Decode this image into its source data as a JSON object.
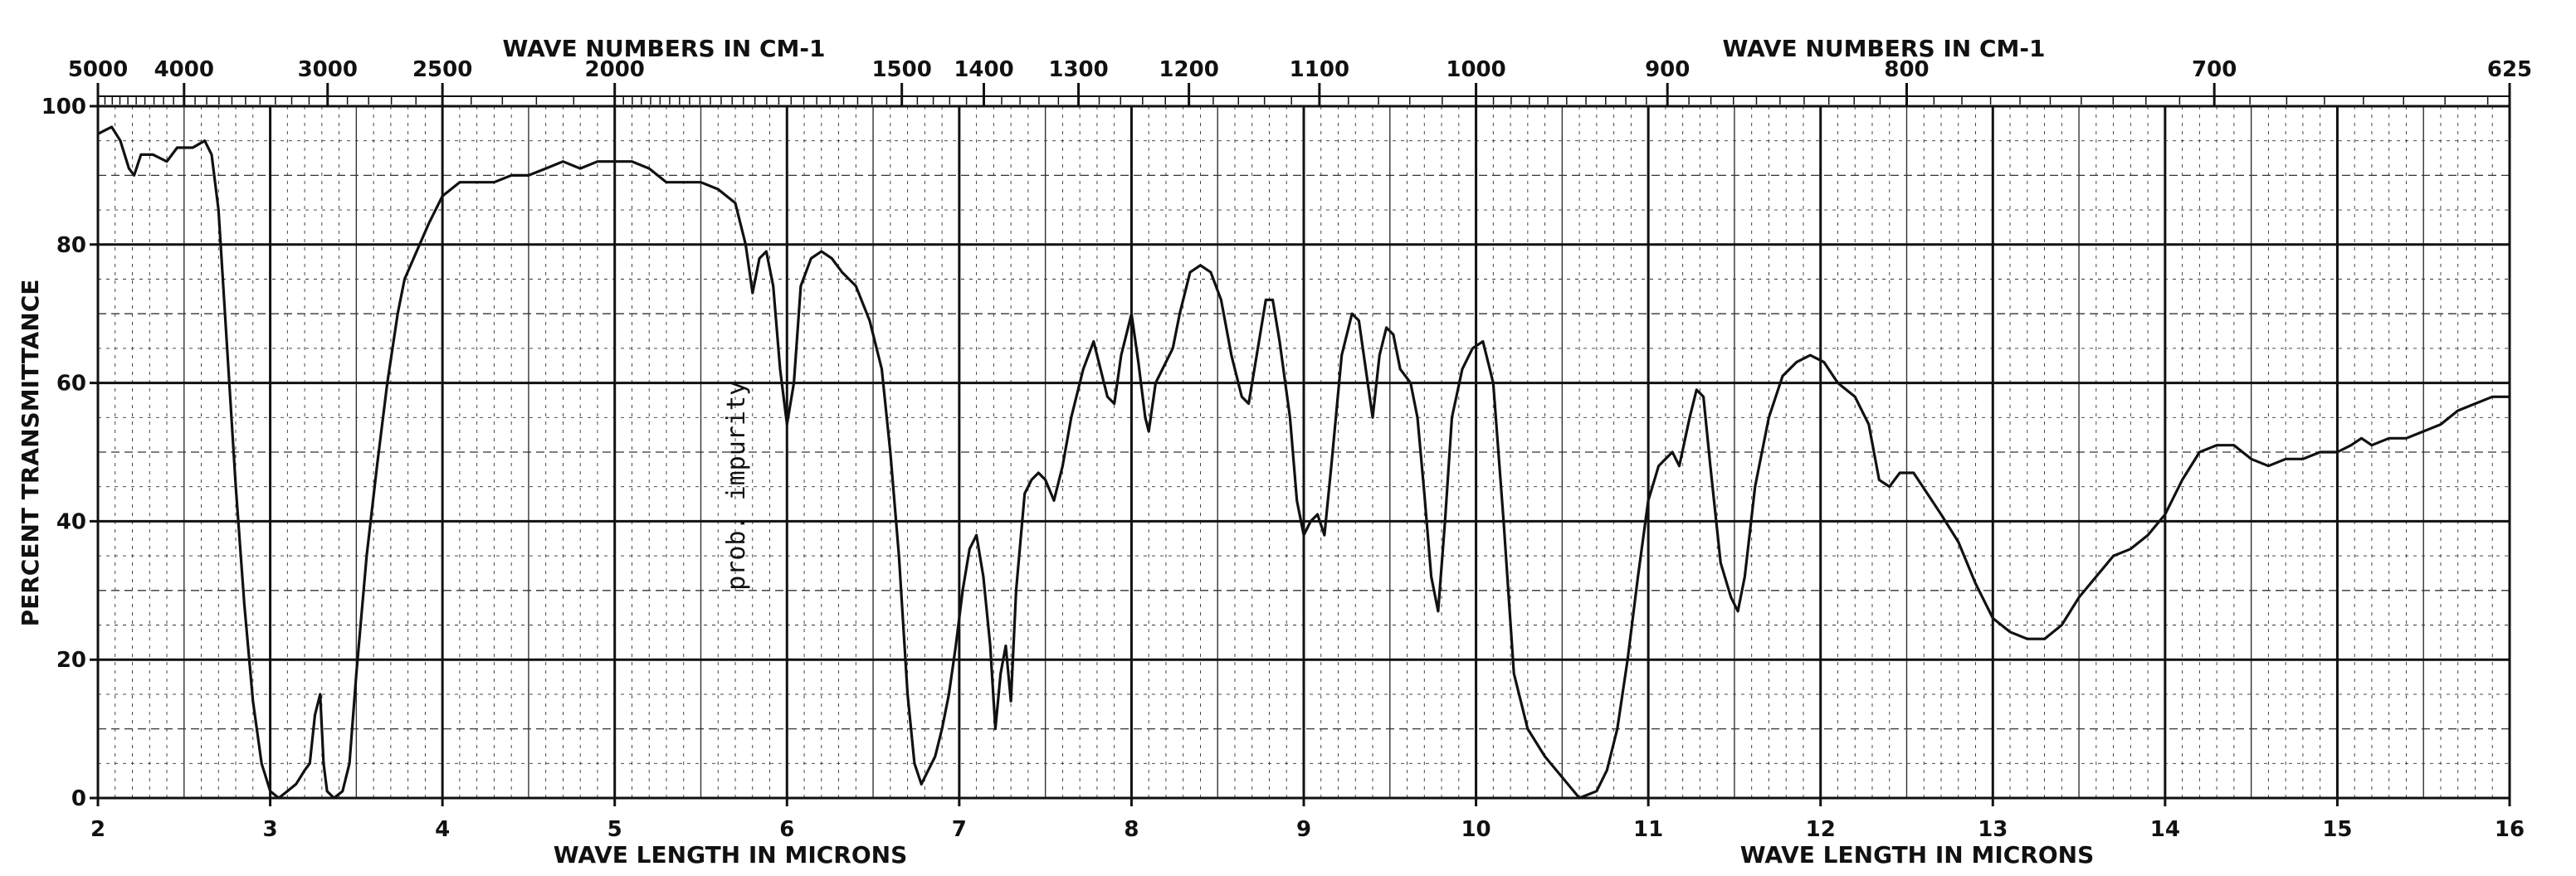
{
  "chart_data": {
    "type": "line",
    "title_top_left": "WAVE NUMBERS IN CM-1",
    "title_top_right": "WAVE NUMBERS IN CM-1",
    "xlabel_left": "WAVE LENGTH IN MICRONS",
    "xlabel_right": "WAVE LENGTH IN MICRONS",
    "ylabel": "PERCENT TRANSMITTANCE",
    "xlim": [
      2,
      16
    ],
    "ylim": [
      0,
      100
    ],
    "x_ticks": [
      "2",
      "3",
      "4",
      "5",
      "6",
      "7",
      "8",
      "9",
      "10",
      "11",
      "12",
      "13",
      "14",
      "15",
      "16"
    ],
    "y_ticks": [
      "0",
      "20",
      "40",
      "60",
      "80",
      "100"
    ],
    "wavenumber_ticks": [
      {
        "label": "5000",
        "cm": 5000
      },
      {
        "label": "4000",
        "cm": 4000
      },
      {
        "label": "3000",
        "cm": 3000
      },
      {
        "label": "2500",
        "cm": 2500
      },
      {
        "label": "2000",
        "cm": 2000
      },
      {
        "label": "1500",
        "cm": 1500
      },
      {
        "label": "1400",
        "cm": 1400
      },
      {
        "label": "1300",
        "cm": 1300
      },
      {
        "label": "1200",
        "cm": 1200
      },
      {
        "label": "1100",
        "cm": 1100
      },
      {
        "label": "1000",
        "cm": 1000
      },
      {
        "label": "900",
        "cm": 900
      },
      {
        "label": "800",
        "cm": 800
      },
      {
        "label": "700",
        "cm": 700
      },
      {
        "label": "625",
        "cm": 625
      }
    ],
    "annotation": {
      "text": "prob. impurity",
      "x": 5.8,
      "y": 30
    },
    "grid": true,
    "series": [
      {
        "points": [
          [
            2.0,
            96
          ],
          [
            2.08,
            97
          ],
          [
            2.13,
            95
          ],
          [
            2.18,
            91
          ],
          [
            2.21,
            90
          ],
          [
            2.25,
            93
          ],
          [
            2.32,
            93
          ],
          [
            2.4,
            92
          ],
          [
            2.46,
            94
          ],
          [
            2.55,
            94
          ],
          [
            2.62,
            95
          ],
          [
            2.66,
            93
          ],
          [
            2.7,
            85
          ],
          [
            2.75,
            65
          ],
          [
            2.8,
            45
          ],
          [
            2.85,
            28
          ],
          [
            2.9,
            14
          ],
          [
            2.95,
            5
          ],
          [
            3.0,
            1
          ],
          [
            3.05,
            0
          ],
          [
            3.1,
            1
          ],
          [
            3.15,
            2
          ],
          [
            3.2,
            4
          ],
          [
            3.23,
            5
          ],
          [
            3.26,
            12
          ],
          [
            3.29,
            15
          ],
          [
            3.31,
            5
          ],
          [
            3.33,
            1
          ],
          [
            3.37,
            0
          ],
          [
            3.42,
            1
          ],
          [
            3.46,
            5
          ],
          [
            3.5,
            18
          ],
          [
            3.56,
            35
          ],
          [
            3.62,
            48
          ],
          [
            3.68,
            60
          ],
          [
            3.74,
            70
          ],
          [
            3.78,
            75
          ],
          [
            3.85,
            79
          ],
          [
            3.92,
            83
          ],
          [
            4.0,
            87
          ],
          [
            4.1,
            89
          ],
          [
            4.2,
            89
          ],
          [
            4.3,
            89
          ],
          [
            4.4,
            90
          ],
          [
            4.5,
            90
          ],
          [
            4.6,
            91
          ],
          [
            4.7,
            92
          ],
          [
            4.8,
            91
          ],
          [
            4.9,
            92
          ],
          [
            5.0,
            92
          ],
          [
            5.1,
            92
          ],
          [
            5.2,
            91
          ],
          [
            5.3,
            89
          ],
          [
            5.4,
            89
          ],
          [
            5.5,
            89
          ],
          [
            5.6,
            88
          ],
          [
            5.7,
            86
          ],
          [
            5.76,
            80
          ],
          [
            5.8,
            73
          ],
          [
            5.84,
            78
          ],
          [
            5.88,
            79
          ],
          [
            5.92,
            74
          ],
          [
            5.96,
            62
          ],
          [
            6.0,
            54
          ],
          [
            6.04,
            60
          ],
          [
            6.08,
            74
          ],
          [
            6.14,
            78
          ],
          [
            6.2,
            79
          ],
          [
            6.26,
            78
          ],
          [
            6.32,
            76
          ],
          [
            6.4,
            74
          ],
          [
            6.48,
            69
          ],
          [
            6.55,
            62
          ],
          [
            6.6,
            50
          ],
          [
            6.65,
            35
          ],
          [
            6.7,
            15
          ],
          [
            6.74,
            5
          ],
          [
            6.78,
            2
          ],
          [
            6.82,
            4
          ],
          [
            6.86,
            6
          ],
          [
            6.9,
            10
          ],
          [
            6.94,
            15
          ],
          [
            6.98,
            22
          ],
          [
            7.02,
            30
          ],
          [
            7.06,
            36
          ],
          [
            7.1,
            38
          ],
          [
            7.14,
            32
          ],
          [
            7.18,
            22
          ],
          [
            7.21,
            10
          ],
          [
            7.24,
            18
          ],
          [
            7.27,
            22
          ],
          [
            7.3,
            14
          ],
          [
            7.33,
            30
          ],
          [
            7.38,
            44
          ],
          [
            7.42,
            46
          ],
          [
            7.46,
            47
          ],
          [
            7.5,
            46
          ],
          [
            7.55,
            43
          ],
          [
            7.6,
            48
          ],
          [
            7.65,
            55
          ],
          [
            7.72,
            62
          ],
          [
            7.78,
            66
          ],
          [
            7.82,
            62
          ],
          [
            7.86,
            58
          ],
          [
            7.9,
            57
          ],
          [
            7.94,
            64
          ],
          [
            7.98,
            68
          ],
          [
            8.0,
            70
          ],
          [
            8.04,
            63
          ],
          [
            8.08,
            55
          ],
          [
            8.1,
            53
          ],
          [
            8.14,
            60
          ],
          [
            8.2,
            63
          ],
          [
            8.24,
            65
          ],
          [
            8.28,
            70
          ],
          [
            8.34,
            76
          ],
          [
            8.4,
            77
          ],
          [
            8.46,
            76
          ],
          [
            8.52,
            72
          ],
          [
            8.58,
            64
          ],
          [
            8.64,
            58
          ],
          [
            8.68,
            57
          ],
          [
            8.72,
            63
          ],
          [
            8.78,
            72
          ],
          [
            8.82,
            72
          ],
          [
            8.86,
            66
          ],
          [
            8.92,
            55
          ],
          [
            8.96,
            43
          ],
          [
            9.0,
            38
          ],
          [
            9.04,
            40
          ],
          [
            9.08,
            41
          ],
          [
            9.12,
            38
          ],
          [
            9.16,
            48
          ],
          [
            9.22,
            64
          ],
          [
            9.28,
            70
          ],
          [
            9.32,
            69
          ],
          [
            9.36,
            62
          ],
          [
            9.4,
            55
          ],
          [
            9.44,
            64
          ],
          [
            9.48,
            68
          ],
          [
            9.52,
            67
          ],
          [
            9.56,
            62
          ],
          [
            9.62,
            60
          ],
          [
            9.66,
            55
          ],
          [
            9.7,
            44
          ],
          [
            9.74,
            32
          ],
          [
            9.78,
            27
          ],
          [
            9.82,
            40
          ],
          [
            9.86,
            55
          ],
          [
            9.92,
            62
          ],
          [
            9.98,
            65
          ],
          [
            10.04,
            66
          ],
          [
            10.1,
            60
          ],
          [
            10.16,
            40
          ],
          [
            10.22,
            18
          ],
          [
            10.3,
            10
          ],
          [
            10.4,
            6
          ],
          [
            10.5,
            3
          ],
          [
            10.6,
            0
          ],
          [
            10.7,
            1
          ],
          [
            10.76,
            4
          ],
          [
            10.82,
            10
          ],
          [
            10.88,
            20
          ],
          [
            10.94,
            32
          ],
          [
            11.0,
            43
          ],
          [
            11.06,
            48
          ],
          [
            11.1,
            49
          ],
          [
            11.14,
            50
          ],
          [
            11.18,
            48
          ],
          [
            11.24,
            55
          ],
          [
            11.28,
            59
          ],
          [
            11.32,
            58
          ],
          [
            11.36,
            48
          ],
          [
            11.42,
            34
          ],
          [
            11.48,
            29
          ],
          [
            11.52,
            27
          ],
          [
            11.56,
            32
          ],
          [
            11.62,
            45
          ],
          [
            11.7,
            55
          ],
          [
            11.78,
            61
          ],
          [
            11.86,
            63
          ],
          [
            11.94,
            64
          ],
          [
            12.02,
            63
          ],
          [
            12.1,
            60
          ],
          [
            12.2,
            58
          ],
          [
            12.28,
            54
          ],
          [
            12.34,
            46
          ],
          [
            12.4,
            45
          ],
          [
            12.46,
            47
          ],
          [
            12.54,
            47
          ],
          [
            12.62,
            44
          ],
          [
            12.7,
            41
          ],
          [
            12.8,
            37
          ],
          [
            12.9,
            31
          ],
          [
            13.0,
            26
          ],
          [
            13.1,
            24
          ],
          [
            13.2,
            23
          ],
          [
            13.3,
            23
          ],
          [
            13.4,
            25
          ],
          [
            13.5,
            29
          ],
          [
            13.6,
            32
          ],
          [
            13.7,
            35
          ],
          [
            13.8,
            36
          ],
          [
            13.9,
            38
          ],
          [
            14.0,
            41
          ],
          [
            14.1,
            46
          ],
          [
            14.2,
            50
          ],
          [
            14.3,
            51
          ],
          [
            14.4,
            51
          ],
          [
            14.5,
            49
          ],
          [
            14.6,
            48
          ],
          [
            14.7,
            49
          ],
          [
            14.8,
            49
          ],
          [
            14.9,
            50
          ],
          [
            15.0,
            50
          ],
          [
            15.08,
            51
          ],
          [
            15.14,
            52
          ],
          [
            15.2,
            51
          ],
          [
            15.3,
            52
          ],
          [
            15.4,
            52
          ],
          [
            15.5,
            53
          ],
          [
            15.6,
            54
          ],
          [
            15.7,
            56
          ],
          [
            15.8,
            57
          ],
          [
            15.9,
            58
          ],
          [
            16.0,
            58
          ]
        ]
      }
    ]
  }
}
